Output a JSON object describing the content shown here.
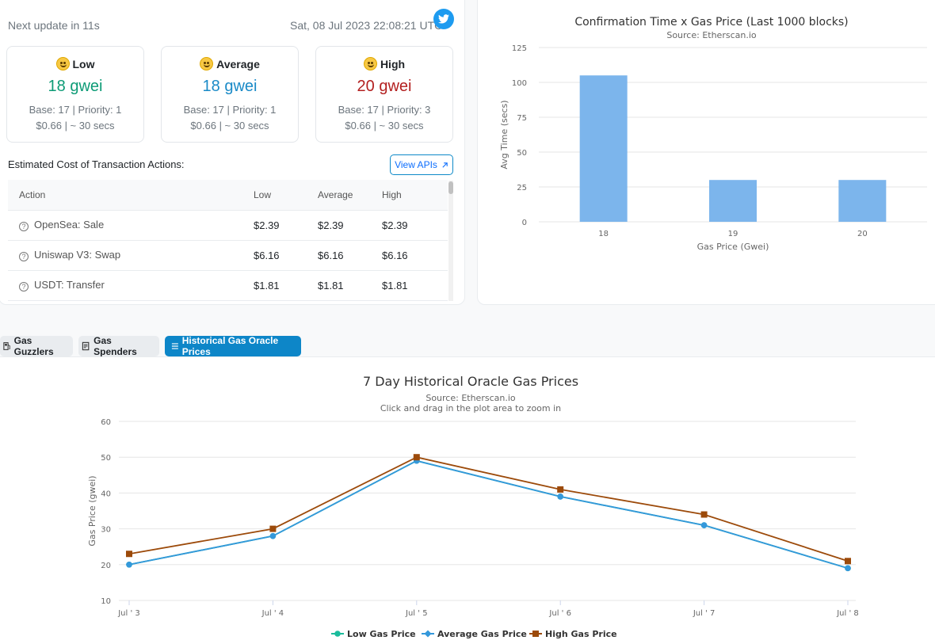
{
  "header": {
    "next_update": "Next update in 11s",
    "timestamp": "Sat, 08 Jul 2023 22:08:21 UTC",
    "twitter_icon": "twitter-icon"
  },
  "gas_tiers": [
    {
      "label": "Low",
      "emoji": "grinning-face-icon",
      "price": "18 gwei",
      "color": "#0d9b76",
      "base_priority": "Base: 17 | Priority: 1",
      "cost_time": "$0.66 | ~ 30 secs"
    },
    {
      "label": "Average",
      "emoji": "smiling-face-icon",
      "price": "18 gwei",
      "color": "#1a8ac7",
      "base_priority": "Base: 17 | Priority: 1",
      "cost_time": "$0.66 | ~ 30 secs"
    },
    {
      "label": "High",
      "emoji": "slight-smile-icon",
      "price": "20 gwei",
      "color": "#b32020",
      "base_priority": "Base: 17 | Priority: 3",
      "cost_time": "$0.66 | ~ 30 secs"
    }
  ],
  "actions_section": {
    "title": "Estimated Cost of Transaction Actions:",
    "view_apis": "View APIs",
    "columns": [
      "Action",
      "Low",
      "Average",
      "High"
    ],
    "rows": [
      {
        "action": "OpenSea: Sale",
        "low": "$2.39",
        "average": "$2.39",
        "high": "$2.39"
      },
      {
        "action": "Uniswap V3: Swap",
        "low": "$6.16",
        "average": "$6.16",
        "high": "$6.16"
      },
      {
        "action": "USDT: Transfer",
        "low": "$1.81",
        "average": "$1.81",
        "high": "$1.81"
      }
    ]
  },
  "tabs": [
    {
      "label": "Gas Guzzlers",
      "icon": "gas-pump-icon",
      "active": false
    },
    {
      "label": "Gas Spenders",
      "icon": "receipt-icon",
      "active": false
    },
    {
      "label": "Historical Gas Oracle Prices",
      "icon": "list-icon",
      "active": true
    }
  ],
  "chart_data": [
    {
      "type": "bar",
      "title": "Confirmation Time x Gas Price (Last 1000 blocks)",
      "subtitle": "Source: Etherscan.io",
      "xlabel": "Gas Price (Gwei)",
      "ylabel": "Avg Time (secs)",
      "categories": [
        "18",
        "19",
        "20"
      ],
      "values": [
        105,
        30,
        30
      ],
      "ylim": [
        0,
        125
      ],
      "yticks": [
        0,
        25,
        50,
        75,
        100,
        125
      ],
      "color": "#7cb5ec",
      "grid": true
    },
    {
      "type": "line",
      "title": "7 Day Historical Oracle Gas Prices",
      "subtitle": "Source: Etherscan.io",
      "subtitle2": "Click and drag in the plot area to zoom in",
      "xlabel": "",
      "ylabel": "Gas Price (gwei)",
      "x": [
        "Jul ' 3",
        "Jul ' 4",
        "Jul ' 5",
        "Jul ' 6",
        "Jul ' 7",
        "Jul ' 8"
      ],
      "ylim": [
        10,
        60
      ],
      "yticks": [
        10,
        20,
        30,
        40,
        50,
        60
      ],
      "legend_position": "bottom",
      "grid": true,
      "series": [
        {
          "name": "Low Gas Price",
          "color": "#1abc9c",
          "marker": "circle",
          "values": [
            20,
            28,
            49,
            39,
            31,
            19
          ]
        },
        {
          "name": "Average Gas Price",
          "color": "#3498db",
          "marker": "diamond",
          "values": [
            20,
            28,
            49,
            39,
            31,
            19
          ]
        },
        {
          "name": "High Gas Price",
          "color": "#9c4a0a",
          "marker": "square",
          "values": [
            23,
            30,
            50,
            41,
            34,
            21
          ]
        }
      ]
    }
  ]
}
